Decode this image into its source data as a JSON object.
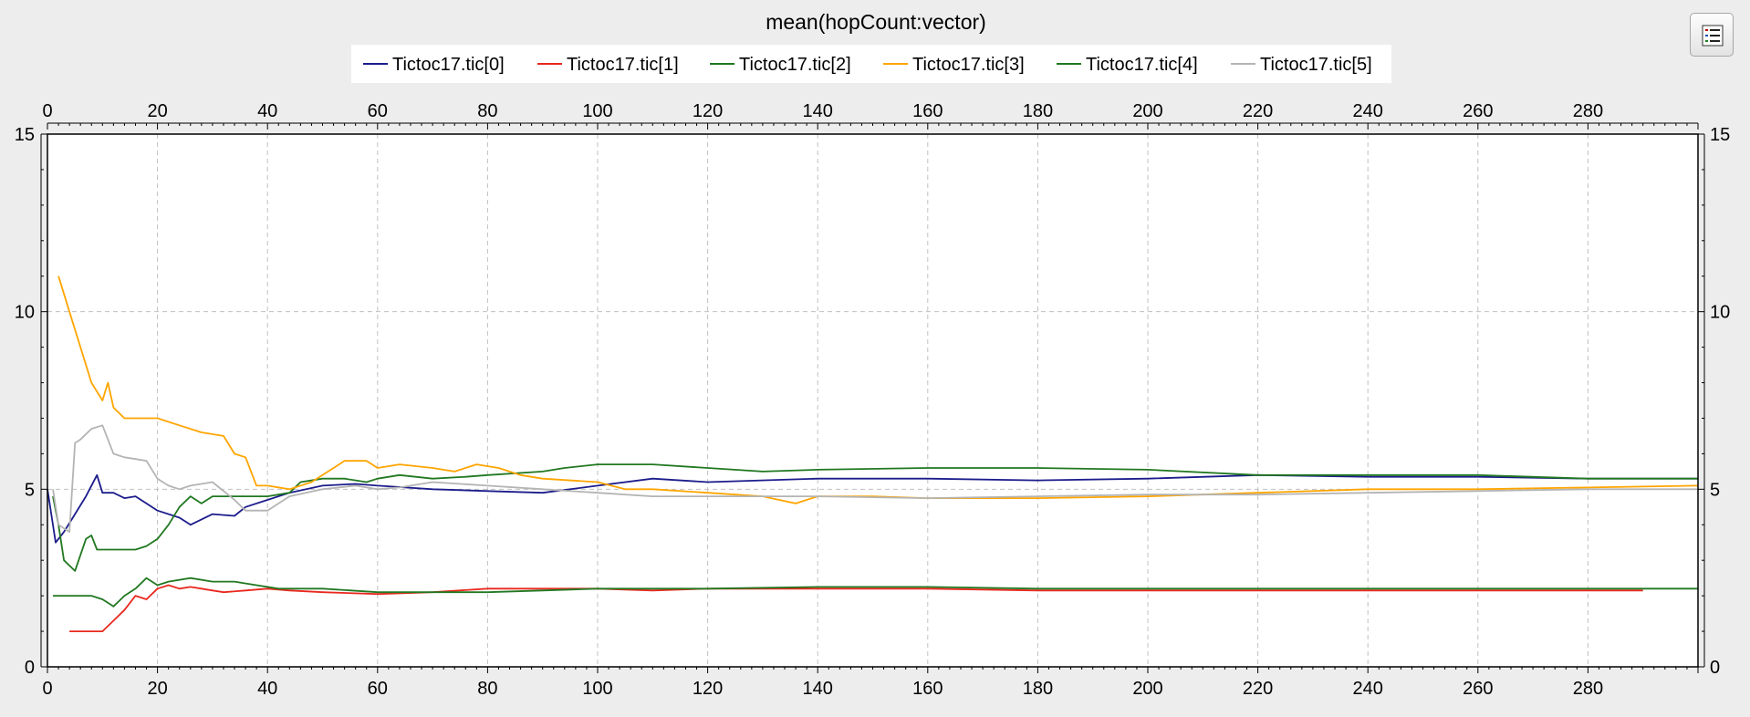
{
  "title": "mean(hopCount:vector)",
  "colors": {
    "background": "#ededed",
    "plot_background": "#ffffff",
    "grid": "#c0c0c0",
    "axis": "#000000"
  },
  "chart_data": {
    "type": "line",
    "title": "mean(hopCount:vector)",
    "xlabel": "",
    "ylabel": "",
    "xlim": [
      0,
      300
    ],
    "ylim": [
      0,
      15
    ],
    "x_ticks": [
      0,
      20,
      40,
      60,
      80,
      100,
      120,
      140,
      160,
      180,
      200,
      220,
      240,
      260,
      280
    ],
    "y_ticks": [
      0,
      5,
      10,
      15
    ],
    "x_axis_top": true,
    "y_axis_right": true,
    "grid": true,
    "legend_position": "top",
    "series": [
      {
        "name": "Tictoc17.tic[0]",
        "color": "#1c1c8c",
        "x": [
          0,
          1.5,
          3,
          5,
          7,
          9,
          10,
          12,
          14,
          16,
          18,
          20,
          24,
          26,
          30,
          34,
          36,
          40,
          44,
          50,
          56,
          60,
          70,
          80,
          90,
          100,
          110,
          120,
          140,
          160,
          180,
          200,
          220,
          240,
          260,
          280,
          300
        ],
        "y": [
          5.0,
          3.5,
          3.8,
          4.3,
          4.8,
          5.4,
          4.9,
          4.9,
          4.75,
          4.8,
          4.6,
          4.4,
          4.2,
          4.0,
          4.3,
          4.25,
          4.5,
          4.7,
          4.9,
          5.1,
          5.15,
          5.1,
          5.0,
          4.95,
          4.9,
          5.1,
          5.3,
          5.2,
          5.3,
          5.3,
          5.25,
          5.3,
          5.4,
          5.35,
          5.35,
          5.3,
          5.3
        ]
      },
      {
        "name": "Tictoc17.tic[1]",
        "color": "#e8281e",
        "x": [
          4,
          6,
          8,
          10,
          12,
          14,
          15,
          16,
          18,
          20,
          22,
          24,
          26,
          28,
          30,
          32,
          36,
          40,
          44,
          50,
          60,
          70,
          80,
          90,
          100,
          110,
          120,
          140,
          160,
          180,
          200,
          220,
          240,
          260,
          280,
          290
        ],
        "y": [
          1.0,
          1.0,
          1.0,
          1.0,
          1.3,
          1.6,
          1.8,
          2.0,
          1.9,
          2.2,
          2.3,
          2.2,
          2.25,
          2.2,
          2.15,
          2.1,
          2.15,
          2.2,
          2.15,
          2.1,
          2.05,
          2.1,
          2.2,
          2.2,
          2.2,
          2.15,
          2.2,
          2.2,
          2.2,
          2.15,
          2.15,
          2.15,
          2.15,
          2.15,
          2.15,
          2.15
        ]
      },
      {
        "name": "Tictoc17.tic[2]",
        "color": "#217821",
        "x": [
          1,
          2,
          3,
          5,
          7,
          8,
          9,
          10,
          12,
          14,
          16,
          18,
          20,
          22,
          24,
          26,
          28,
          30,
          32,
          36,
          40,
          44,
          46,
          50,
          54,
          58,
          60,
          64,
          70,
          76,
          80,
          90,
          94,
          100,
          110,
          120,
          130,
          140,
          160,
          180,
          200,
          220,
          240,
          260,
          280,
          300
        ],
        "y": [
          4.8,
          4.0,
          3.0,
          2.7,
          3.6,
          3.7,
          3.3,
          3.3,
          3.3,
          3.3,
          3.3,
          3.4,
          3.6,
          4.0,
          4.5,
          4.8,
          4.6,
          4.8,
          4.8,
          4.8,
          4.8,
          4.9,
          5.2,
          5.3,
          5.3,
          5.2,
          5.3,
          5.4,
          5.3,
          5.35,
          5.4,
          5.5,
          5.6,
          5.7,
          5.7,
          5.6,
          5.5,
          5.55,
          5.6,
          5.6,
          5.55,
          5.4,
          5.4,
          5.4,
          5.3,
          5.3
        ]
      },
      {
        "name": "Tictoc17.tic[3]",
        "color": "#ffa500",
        "x": [
          2,
          4,
          6,
          8,
          10,
          11,
          12,
          14,
          16,
          20,
          24,
          28,
          32,
          34,
          36,
          38,
          40,
          44,
          48,
          50,
          52,
          54,
          56,
          58,
          60,
          64,
          70,
          74,
          78,
          82,
          86,
          90,
          100,
          105,
          110,
          120,
          130,
          136,
          140,
          150,
          160,
          180,
          200,
          220,
          240,
          260,
          280,
          300
        ],
        "y": [
          11.0,
          10.0,
          9.0,
          8.0,
          7.5,
          8.0,
          7.3,
          7.0,
          7.0,
          7.0,
          6.8,
          6.6,
          6.5,
          6.0,
          5.9,
          5.1,
          5.1,
          5.0,
          5.2,
          5.4,
          5.6,
          5.8,
          5.8,
          5.8,
          5.6,
          5.7,
          5.6,
          5.5,
          5.7,
          5.6,
          5.4,
          5.3,
          5.2,
          5.0,
          5.0,
          4.9,
          4.8,
          4.6,
          4.8,
          4.8,
          4.75,
          4.75,
          4.8,
          4.9,
          5.0,
          5.0,
          5.05,
          5.1
        ]
      },
      {
        "name": "Tictoc17.tic[4]",
        "color": "#217821",
        "x": [
          1,
          2,
          4,
          6,
          8,
          10,
          12,
          14,
          16,
          18,
          20,
          22,
          26,
          30,
          34,
          38,
          42,
          46,
          50,
          60,
          70,
          80,
          90,
          100,
          120,
          140,
          160,
          180,
          200,
          220,
          240,
          260,
          280,
          300
        ],
        "y": [
          2.0,
          2.0,
          2.0,
          2.0,
          2.0,
          1.9,
          1.7,
          2.0,
          2.2,
          2.5,
          2.3,
          2.4,
          2.5,
          2.4,
          2.4,
          2.3,
          2.2,
          2.2,
          2.2,
          2.1,
          2.1,
          2.1,
          2.15,
          2.2,
          2.2,
          2.25,
          2.25,
          2.2,
          2.2,
          2.2,
          2.2,
          2.2,
          2.2,
          2.2
        ]
      },
      {
        "name": "Tictoc17.tic[5]",
        "color": "#b4b4b4",
        "x": [
          1,
          2,
          4,
          5,
          6,
          8,
          10,
          12,
          14,
          16,
          18,
          20,
          22,
          24,
          26,
          30,
          34,
          36,
          40,
          44,
          50,
          56,
          60,
          64,
          70,
          80,
          90,
          100,
          110,
          120,
          140,
          160,
          180,
          200,
          220,
          240,
          260,
          280,
          300
        ],
        "y": [
          5.0,
          4.0,
          3.8,
          6.3,
          6.4,
          6.7,
          6.8,
          6.0,
          5.9,
          5.85,
          5.8,
          5.3,
          5.1,
          5.0,
          5.1,
          5.2,
          4.7,
          4.4,
          4.4,
          4.8,
          5.0,
          5.1,
          5.0,
          5.05,
          5.2,
          5.1,
          5.0,
          4.9,
          4.8,
          4.8,
          4.8,
          4.75,
          4.8,
          4.85,
          4.85,
          4.9,
          4.95,
          5.0,
          5.0
        ]
      }
    ]
  }
}
